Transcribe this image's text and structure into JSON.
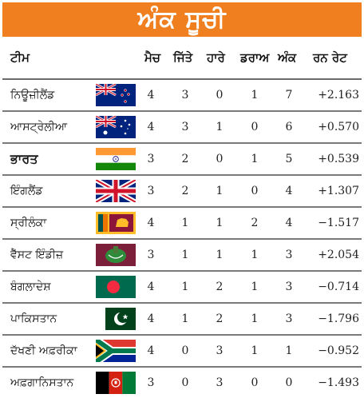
{
  "title": "ਅੰਕ ਸੂਚੀ",
  "headers": [
    "ਟੀਮ",
    "ਮੈਚ",
    "ਜਿੱਤੇ",
    "ਹਾਰੇ",
    "ਡਰਾਅ",
    "ਅੰਕ",
    "ਰਨ ਰੇਟ"
  ],
  "colors": {
    "header_bg": "#f07f1f",
    "title_text": "#ffffff"
  },
  "rows": [
    {
      "team": "ਨਿਊਜ਼ੀਲੈਂਡ",
      "flag": "new-zealand-flag",
      "played": "4",
      "won": "3",
      "lost": "0",
      "draw": "1",
      "points": "7",
      "nrr": "+2.163"
    },
    {
      "team": "ਆਸਟ੍ਰੇਲੀਆ",
      "flag": "australia-flag",
      "played": "4",
      "won": "3",
      "lost": "1",
      "draw": "0",
      "points": "6",
      "nrr": "+0.570"
    },
    {
      "team": "ਭਾਰਤ",
      "flag": "india-flag",
      "played": "3",
      "won": "2",
      "lost": "0",
      "draw": "1",
      "points": "5",
      "nrr": "+0.539"
    },
    {
      "team": "ਇੰਗਲੈਂਡ",
      "flag": "england-flag",
      "played": "3",
      "won": "2",
      "lost": "1",
      "draw": "0",
      "points": "4",
      "nrr": "+1.307"
    },
    {
      "team": "ਸ੍ਰੀਲੰਕਾ",
      "flag": "sri-lanka-flag",
      "played": "4",
      "won": "1",
      "lost": "1",
      "draw": "2",
      "points": "4",
      "nrr": "−1.517"
    },
    {
      "team": "ਵੈੱਸਟ ਇੰਡੀਜ਼",
      "flag": "west-indies-flag",
      "played": "3",
      "won": "1",
      "lost": "1",
      "draw": "1",
      "points": "3",
      "nrr": "+2.054"
    },
    {
      "team": "ਬੰਗਲਾਦੇਸ਼",
      "flag": "bangladesh-flag",
      "played": "4",
      "won": "1",
      "lost": "2",
      "draw": "1",
      "points": "3",
      "nrr": "−0.714"
    },
    {
      "team": "ਪਾਕਿਸਤਾਨ",
      "flag": "pakistan-flag",
      "played": "4",
      "won": "1",
      "lost": "2",
      "draw": "1",
      "points": "3",
      "nrr": "−1.796"
    },
    {
      "team": "ਦੱਖਣੀ ਅਫ਼ਰੀਕਾ",
      "flag": "south-africa-flag",
      "played": "4",
      "won": "0",
      "lost": "3",
      "draw": "1",
      "points": "1",
      "nrr": "−0.952"
    },
    {
      "team": "ਅਫ਼ਗਾਨਿਸਤਾਨ",
      "flag": "afghanistan-flag",
      "played": "3",
      "won": "0",
      "lost": "3",
      "draw": "0",
      "points": "0",
      "nrr": "−1.493"
    }
  ]
}
